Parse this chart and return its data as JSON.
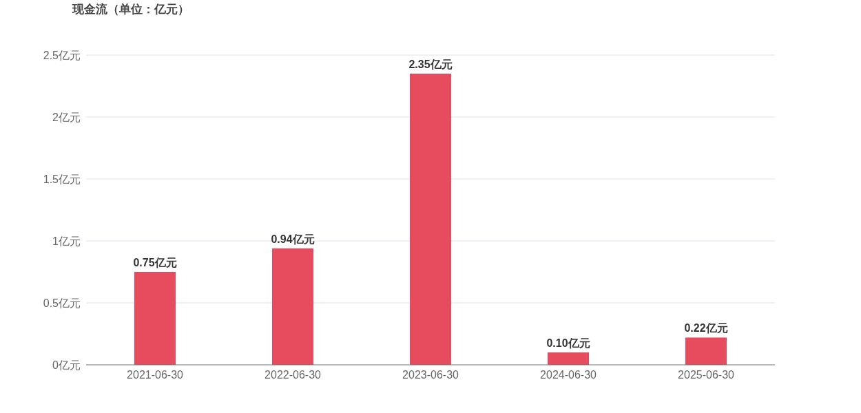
{
  "chart_data": {
    "type": "bar",
    "title": "现金流（单位：亿元）",
    "categories": [
      "2021-06-30",
      "2022-06-30",
      "2023-06-30",
      "2024-06-30",
      "2025-06-30"
    ],
    "values": [
      0.75,
      0.94,
      2.35,
      0.1,
      0.22
    ],
    "value_labels": [
      "0.75亿元",
      "0.94亿元",
      "2.35亿元",
      "0.10亿元",
      "0.22亿元"
    ],
    "color": "#e64c5e",
    "ylim": [
      0,
      2.5
    ],
    "yticks": [
      {
        "value": 0,
        "label": "0亿元"
      },
      {
        "value": 0.5,
        "label": "0.5亿元"
      },
      {
        "value": 1,
        "label": "1亿元"
      },
      {
        "value": 1.5,
        "label": "1.5亿元"
      },
      {
        "value": 2,
        "label": "2亿元"
      },
      {
        "value": 2.5,
        "label": "2.5亿元"
      }
    ],
    "grid": "y"
  }
}
